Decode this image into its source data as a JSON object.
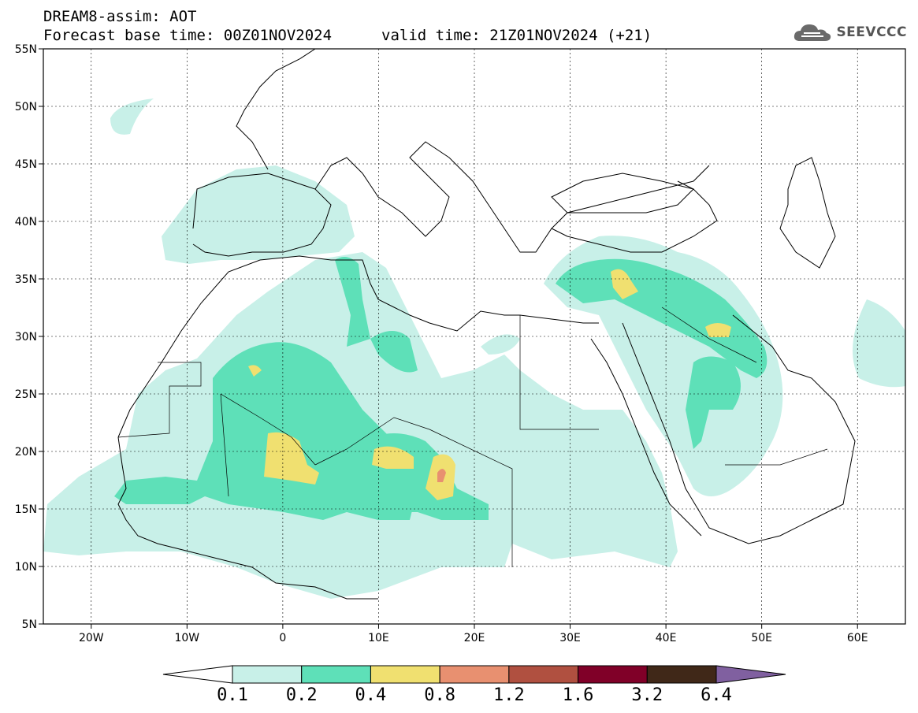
{
  "header": {
    "line1": "DREAM8-assim: AOT",
    "line2": "Forecast base time: 00Z01NOV2024",
    "line3": "valid time: 21Z01NOV2024 (+21)",
    "logo_text": "SEEVCCC",
    "logo_icon": "cloud-icon"
  },
  "map": {
    "variable": "AOT",
    "lon_range": [
      -25,
      65
    ],
    "lat_range": [
      5,
      55
    ],
    "lat_labels": [
      "55N",
      "50N",
      "45N",
      "40N",
      "35N",
      "30N",
      "25N",
      "20N",
      "15N",
      "10N",
      "5N"
    ],
    "lon_labels": [
      "20W",
      "10W",
      "0",
      "10E",
      "20E",
      "30E",
      "40E",
      "50E",
      "60E"
    ],
    "lat_values": [
      55,
      50,
      45,
      40,
      35,
      30,
      25,
      20,
      15,
      10,
      5
    ],
    "lon_values": [
      -20,
      -10,
      0,
      10,
      20,
      30,
      40,
      50,
      60
    ],
    "gridlines": true
  },
  "colorbar": {
    "colors": [
      "#c8f0e8",
      "#5ee0b8",
      "#f0e070",
      "#e89070",
      "#b05040",
      "#800028",
      "#402818",
      "#8060a0"
    ],
    "low_color": "#ffffff",
    "labels": [
      "0.1",
      "0.2",
      "0.4",
      "0.8",
      "1.2",
      "1.6",
      "3.2",
      "6.4"
    ]
  }
}
